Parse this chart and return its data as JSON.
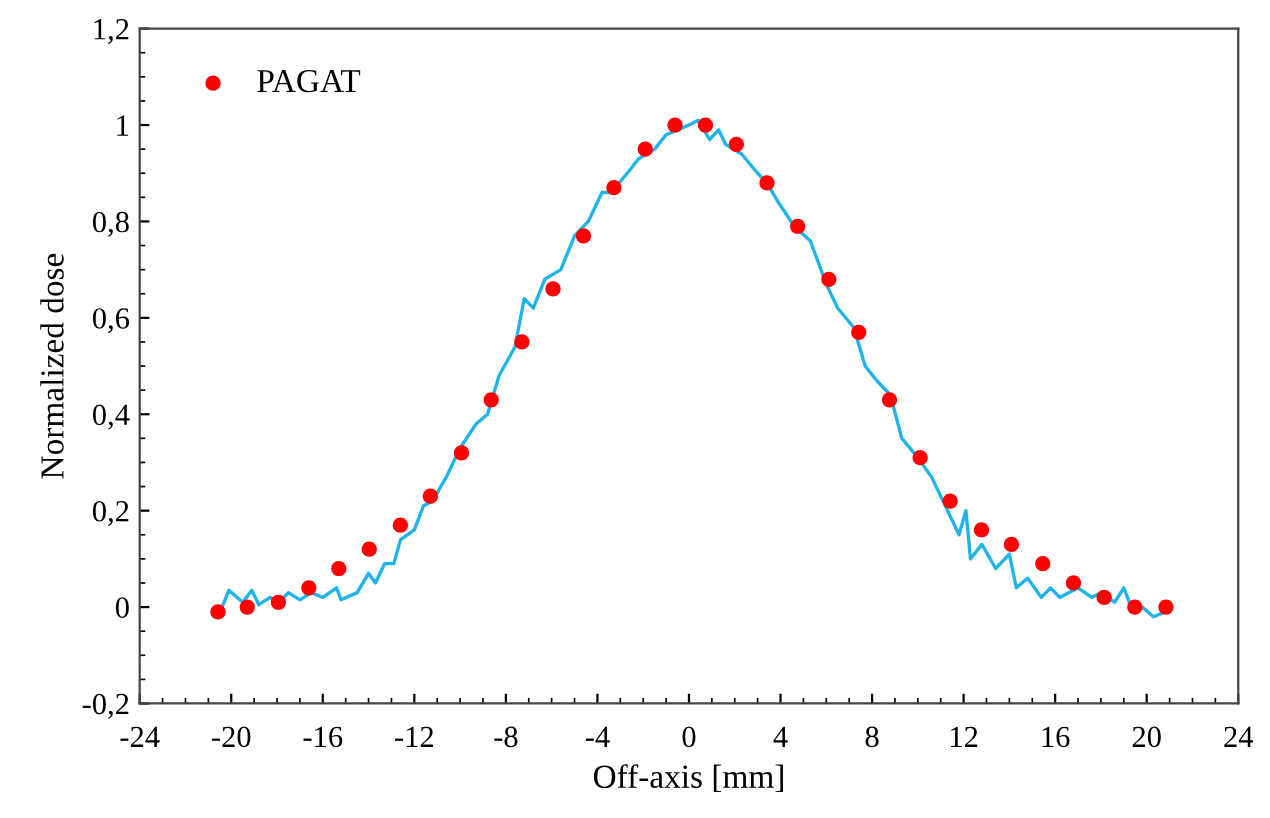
{
  "chart_data": {
    "type": "line",
    "xlabel": "Off-axis [mm]",
    "ylabel": "Normalized dose",
    "xlim": [
      -24,
      24
    ],
    "xticks": [
      -24,
      -20,
      -16,
      -12,
      -8,
      -4,
      0,
      4,
      8,
      12,
      16,
      20,
      24
    ],
    "ylim": [
      -0.2,
      1.2
    ],
    "yticks": [
      {
        "value": -0.2,
        "label": "-0,2"
      },
      0,
      {
        "value": 0.2,
        "label": "0,2"
      },
      {
        "value": 0.4,
        "label": "0,4"
      },
      {
        "value": 0.6,
        "label": "0,6"
      },
      {
        "value": 0.8,
        "label": "0,8"
      },
      1,
      {
        "value": 1.2,
        "label": "1,2"
      }
    ],
    "grid": false,
    "legend": "top left",
    "series": [
      {
        "color": "#1eb4ea",
        "marker": "none",
        "line_style": "solid",
        "x": [
          -20.4,
          -20.1,
          -19.5,
          -19.1,
          -18.8,
          -18.3,
          -17.9,
          -17.5,
          -17.0,
          -16.5,
          -16.0,
          -15.4,
          -15.2,
          -14.5,
          -14.0,
          -13.7,
          -13.3,
          -12.9,
          -12.6,
          -12.0,
          -11.6,
          -11.2,
          -10.6,
          -10.0,
          -9.3,
          -8.8,
          -8.3,
          -7.6,
          -7.2,
          -6.8,
          -6.3,
          -5.6,
          -5.0,
          -4.4,
          -3.8,
          -3.4,
          -2.7,
          -2.2,
          -1.5,
          -1.0,
          -0.5,
          0.0,
          0.4,
          0.9,
          1.3,
          1.6,
          2.3,
          3.0,
          3.4,
          3.9,
          4.6,
          5.3,
          6.0,
          6.5,
          7.2,
          7.7,
          8.2,
          8.8,
          9.3,
          10.0,
          10.6,
          11.2,
          11.8,
          12.1,
          12.3,
          12.8,
          13.4,
          14.0,
          14.3,
          14.8,
          15.4,
          15.8,
          16.2,
          17.0,
          17.6,
          18.0,
          18.6,
          19.0,
          19.4,
          19.8,
          20.3,
          20.8,
          21.0
        ],
        "values": [
          0.0,
          0.035,
          0.01,
          0.035,
          0.005,
          0.02,
          0.01,
          0.03,
          0.015,
          0.03,
          0.02,
          0.04,
          0.015,
          0.03,
          0.07,
          0.05,
          0.09,
          0.09,
          0.14,
          0.16,
          0.21,
          0.22,
          0.27,
          0.33,
          0.38,
          0.4,
          0.48,
          0.54,
          0.64,
          0.62,
          0.68,
          0.7,
          0.77,
          0.8,
          0.86,
          0.86,
          0.9,
          0.93,
          0.95,
          0.98,
          0.99,
          1.0,
          1.01,
          0.97,
          0.99,
          0.96,
          0.94,
          0.9,
          0.88,
          0.84,
          0.79,
          0.76,
          0.67,
          0.62,
          0.58,
          0.5,
          0.47,
          0.44,
          0.35,
          0.31,
          0.27,
          0.21,
          0.15,
          0.2,
          0.1,
          0.13,
          0.08,
          0.11,
          0.04,
          0.06,
          0.02,
          0.04,
          0.02,
          0.04,
          0.02,
          0.03,
          0.01,
          0.04,
          -0.01,
          0.0,
          -0.02,
          -0.01,
          0.01
        ]
      },
      {
        "type": "scatter",
        "name": "PAGAT",
        "color": "#ff0000",
        "marker": "circle",
        "x": [
          -20.58,
          -19.3,
          -17.94,
          -16.61,
          -15.3,
          -13.97,
          -12.61,
          -11.3,
          -9.94,
          -8.64,
          -7.3,
          -5.94,
          -4.61,
          -3.28,
          -1.91,
          -0.61,
          0.72,
          2.07,
          3.41,
          4.75,
          6.11,
          7.42,
          8.76,
          10.1,
          11.41,
          12.78,
          14.09,
          15.46,
          16.8,
          18.14,
          19.48,
          20.84
        ],
        "values": [
          -0.01,
          0.0,
          0.01,
          0.04,
          0.08,
          0.12,
          0.17,
          0.23,
          0.32,
          0.43,
          0.55,
          0.66,
          0.77,
          0.87,
          0.95,
          1.0,
          1.0,
          0.96,
          0.88,
          0.79,
          0.68,
          0.57,
          0.43,
          0.31,
          0.22,
          0.16,
          0.13,
          0.09,
          0.05,
          0.02,
          0.0,
          0.0
        ]
      }
    ]
  }
}
